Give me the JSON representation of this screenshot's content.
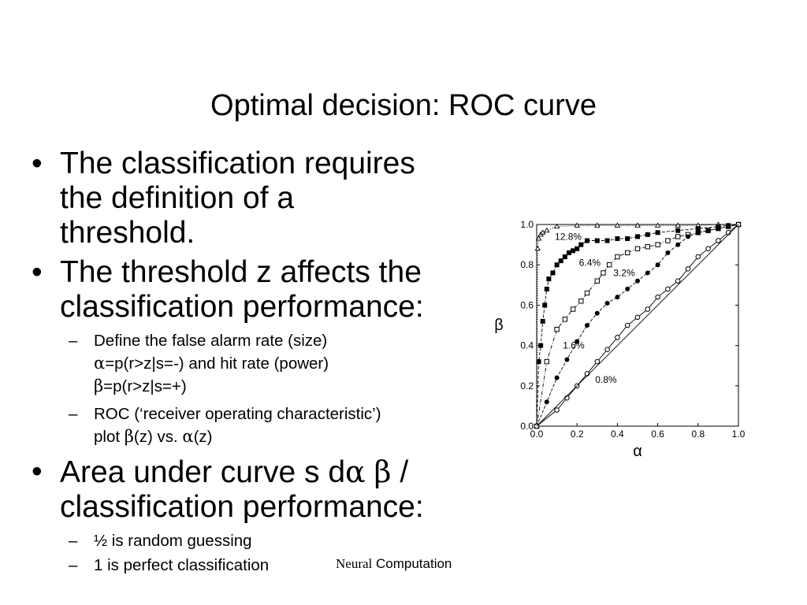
{
  "slide": {
    "title": "Optimal decision: ROC curve",
    "bullet1": {
      "line1": "The classification requires",
      "line2": "the definition of a",
      "line3": "threshold."
    },
    "bullet2": {
      "line1": "The threshold z affects the",
      "line2": "classification performance:"
    },
    "sub1": {
      "line1": "Define the false alarm rate (size)",
      "alpha": "α",
      "line2_rest": "=p(r>z|s=-) and hit rate (power)",
      "beta": "β",
      "line3_rest": "=p(r>z|s=+)"
    },
    "sub2": {
      "line1": "ROC (‘receiver operating characteristic’)",
      "line2_a": "plot ",
      "beta": "β",
      "line2_b": "(z) vs. ",
      "alpha": "α",
      "line2_c": "(z)"
    },
    "bullet3": {
      "line1_a": "Area under curve s d",
      "alpha": "α",
      "beta": "β",
      "line1_b": " /",
      "line2": "classification performance:"
    },
    "sub3": "½ is random guessing",
    "sub4": "1 is perfect classification",
    "caption": {
      "serif_part": "Neural",
      "rest": " Computation"
    },
    "bullet_symbol": "•",
    "dash_symbol": "–"
  },
  "chart_data": {
    "type": "line",
    "xlabel": "α",
    "ylabel": "β",
    "xlim": [
      0,
      1
    ],
    "ylim": [
      0,
      1
    ],
    "x_ticks": [
      "0.0",
      "0.2",
      "0.4",
      "0.6",
      "0.8",
      "1.0"
    ],
    "y_ticks": [
      "0.0",
      "0.2",
      "0.4",
      "0.6",
      "0.8",
      "1.0"
    ],
    "grid": false,
    "annotations": [
      {
        "text": "12.8%",
        "x": 0.09,
        "y": 0.94
      },
      {
        "text": "6.4%",
        "x": 0.21,
        "y": 0.81
      },
      {
        "text": "3.2%",
        "x": 0.38,
        "y": 0.76
      },
      {
        "text": "1.6%",
        "x": 0.13,
        "y": 0.4
      },
      {
        "text": "0.8%",
        "x": 0.29,
        "y": 0.23
      }
    ],
    "series": [
      {
        "marker": "triangle",
        "line": "dotted",
        "x": [
          0,
          0.005,
          0.01,
          0.02,
          0.03,
          0.05,
          0.1,
          0.2,
          0.3,
          0.4,
          0.5,
          0.6,
          0.7,
          0.8,
          0.9,
          1.0
        ],
        "y": [
          0,
          0.88,
          0.93,
          0.95,
          0.96,
          0.97,
          0.99,
          0.995,
          0.995,
          0.995,
          0.995,
          0.995,
          0.995,
          0.995,
          1.0,
          1.0
        ]
      },
      {
        "marker": "square-filled",
        "line": "dashed",
        "x": [
          0,
          0.01,
          0.02,
          0.03,
          0.04,
          0.05,
          0.06,
          0.08,
          0.1,
          0.12,
          0.14,
          0.16,
          0.18,
          0.2,
          0.22,
          0.25,
          0.3,
          0.35,
          0.4,
          0.45,
          0.5,
          0.55,
          0.6,
          0.7,
          0.8,
          0.9,
          0.95,
          1.0
        ],
        "y": [
          0,
          0.32,
          0.4,
          0.52,
          0.6,
          0.68,
          0.73,
          0.76,
          0.8,
          0.82,
          0.84,
          0.86,
          0.87,
          0.88,
          0.9,
          0.92,
          0.92,
          0.92,
          0.93,
          0.93,
          0.94,
          0.95,
          0.96,
          0.97,
          0.98,
          0.99,
          0.995,
          1.0
        ]
      },
      {
        "marker": "square-open",
        "line": "dashdot",
        "x": [
          0,
          0.05,
          0.1,
          0.14,
          0.18,
          0.22,
          0.25,
          0.3,
          0.33,
          0.36,
          0.4,
          0.45,
          0.5,
          0.55,
          0.6,
          0.65,
          0.7,
          0.75,
          0.8,
          0.85,
          0.9,
          0.95,
          1.0
        ],
        "y": [
          0,
          0.32,
          0.48,
          0.53,
          0.58,
          0.62,
          0.66,
          0.72,
          0.76,
          0.8,
          0.84,
          0.86,
          0.88,
          0.89,
          0.9,
          0.92,
          0.94,
          0.95,
          0.96,
          0.97,
          0.98,
          0.99,
          1.0
        ]
      },
      {
        "marker": "circle-filled",
        "line": "dashed",
        "x": [
          0,
          0.05,
          0.1,
          0.15,
          0.2,
          0.25,
          0.3,
          0.35,
          0.4,
          0.45,
          0.5,
          0.55,
          0.6,
          0.65,
          0.7,
          0.75,
          0.8,
          0.85,
          0.9,
          0.95,
          1.0
        ],
        "y": [
          0,
          0.12,
          0.24,
          0.33,
          0.42,
          0.5,
          0.56,
          0.61,
          0.64,
          0.68,
          0.72,
          0.76,
          0.8,
          0.86,
          0.9,
          0.94,
          0.96,
          0.97,
          0.98,
          0.99,
          1.0
        ]
      },
      {
        "marker": "circle-open",
        "line": "solid",
        "x": [
          0,
          0.1,
          0.15,
          0.2,
          0.25,
          0.3,
          0.35,
          0.4,
          0.45,
          0.5,
          0.55,
          0.6,
          0.65,
          0.7,
          0.75,
          0.8,
          0.85,
          0.9,
          0.95,
          1.0
        ],
        "y": [
          0,
          0.08,
          0.14,
          0.2,
          0.26,
          0.32,
          0.38,
          0.44,
          0.5,
          0.54,
          0.58,
          0.64,
          0.68,
          0.72,
          0.78,
          0.84,
          0.88,
          0.92,
          0.96,
          1.0
        ]
      },
      {
        "marker": "none",
        "line": "solid",
        "x": [
          0,
          1
        ],
        "y": [
          0,
          1
        ]
      }
    ]
  }
}
